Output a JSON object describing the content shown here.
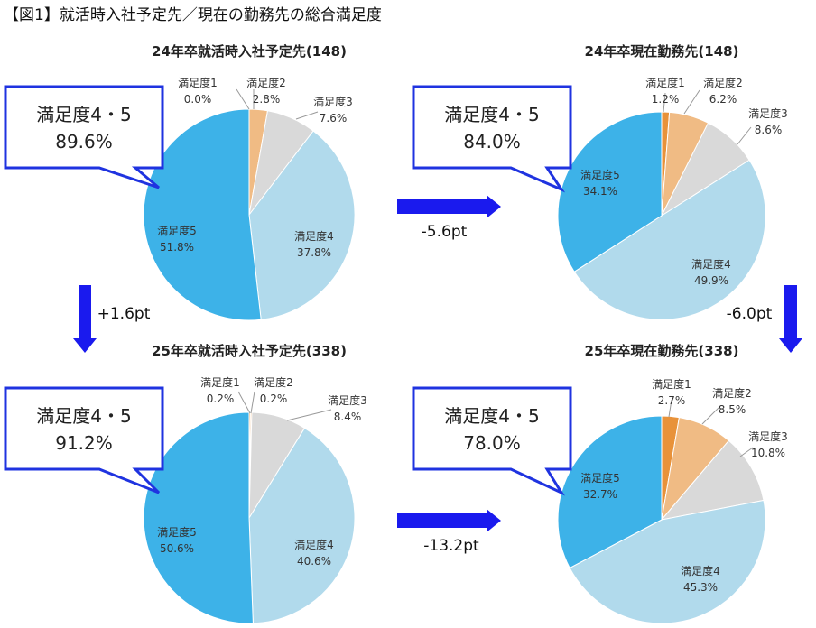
{
  "figure_title": "【図1】就活時入社予定先／現在の勤務先の総合満足度",
  "colors": {
    "s1": "#E8923A",
    "s2": "#F0BB84",
    "s3": "#D9D9D9",
    "s4": "#B1DAEC",
    "s5": "#3DB2E8",
    "callout_border": "#1F33E0",
    "arrow": "#1A1AEE"
  },
  "chart_data": [
    {
      "type": "pie",
      "title": "24年卒就活時入社予定先(148)",
      "slices": [
        {
          "name": "満足度1",
          "value": 0.0,
          "label": "0.0%"
        },
        {
          "name": "満足度2",
          "value": 2.8,
          "label": "2.8%"
        },
        {
          "name": "満足度3",
          "value": 7.6,
          "label": "7.6%"
        },
        {
          "name": "満足度4",
          "value": 37.8,
          "label": "37.8%"
        },
        {
          "name": "満足度5",
          "value": 51.8,
          "label": "51.8%"
        }
      ],
      "callout": {
        "label": "満足度4・5",
        "value": "89.6%"
      }
    },
    {
      "type": "pie",
      "title": "24年卒現在勤務先(148)",
      "slices": [
        {
          "name": "満足度1",
          "value": 1.2,
          "label": "1.2%"
        },
        {
          "name": "満足度2",
          "value": 6.2,
          "label": "6.2%"
        },
        {
          "name": "満足度3",
          "value": 8.6,
          "label": "8.6%"
        },
        {
          "name": "満足度4",
          "value": 49.9,
          "label": "49.9%"
        },
        {
          "name": "満足度5",
          "value": 34.1,
          "label": "34.1%"
        }
      ],
      "callout": {
        "label": "満足度4・5",
        "value": "84.0%"
      }
    },
    {
      "type": "pie",
      "title": "25年卒就活時入社予定先(338)",
      "slices": [
        {
          "name": "満足度1",
          "value": 0.2,
          "label": "0.2%"
        },
        {
          "name": "満足度2",
          "value": 0.2,
          "label": "0.2%"
        },
        {
          "name": "満足度3",
          "value": 8.4,
          "label": "8.4%"
        },
        {
          "name": "満足度4",
          "value": 40.6,
          "label": "40.6%"
        },
        {
          "name": "満足度5",
          "value": 50.6,
          "label": "50.6%"
        }
      ],
      "callout": {
        "label": "満足度4・5",
        "value": "91.2%"
      }
    },
    {
      "type": "pie",
      "title": "25年卒現在勤務先(338)",
      "slices": [
        {
          "name": "満足度1",
          "value": 2.7,
          "label": "2.7%"
        },
        {
          "name": "満足度2",
          "value": 8.5,
          "label": "8.5%"
        },
        {
          "name": "満足度3",
          "value": 10.8,
          "label": "10.8%"
        },
        {
          "name": "満足度4",
          "value": 45.3,
          "label": "45.3%"
        },
        {
          "name": "満足度5",
          "value": 32.7,
          "label": "32.7%"
        }
      ],
      "callout": {
        "label": "満足度4・5",
        "value": "78.0%"
      }
    }
  ],
  "arrows": [
    {
      "direction": "right",
      "label": "-5.6pt"
    },
    {
      "direction": "down",
      "label": "+1.6pt"
    },
    {
      "direction": "down",
      "label": "-6.0pt"
    },
    {
      "direction": "right",
      "label": "-13.2pt"
    }
  ]
}
